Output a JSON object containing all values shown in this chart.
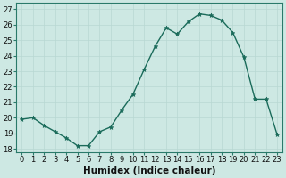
{
  "x": [
    0,
    1,
    2,
    3,
    4,
    5,
    6,
    7,
    8,
    9,
    10,
    11,
    12,
    13,
    14,
    15,
    16,
    17,
    18,
    19,
    20,
    21,
    22,
    23
  ],
  "y": [
    19.9,
    20.0,
    19.5,
    19.1,
    18.7,
    18.2,
    18.2,
    19.1,
    19.4,
    20.5,
    21.5,
    23.1,
    24.6,
    25.8,
    25.4,
    26.2,
    26.7,
    26.6,
    26.3,
    25.5,
    23.9,
    21.2,
    21.2,
    18.9
  ],
  "line_color": "#1a6b5a",
  "marker": "*",
  "marker_size": 3.5,
  "bg_color": "#cde8e3",
  "grid_color": "#b8d8d2",
  "xlabel": "Humidex (Indice chaleur)",
  "ylabel_ticks": [
    18,
    19,
    20,
    21,
    22,
    23,
    24,
    25,
    26,
    27
  ],
  "xticks": [
    0,
    1,
    2,
    3,
    4,
    5,
    6,
    7,
    8,
    9,
    10,
    11,
    12,
    13,
    14,
    15,
    16,
    17,
    18,
    19,
    20,
    21,
    22,
    23
  ],
  "xlim": [
    -0.5,
    23.5
  ],
  "ylim": [
    17.8,
    27.4
  ],
  "tick_fontsize": 6,
  "xlabel_fontsize": 7.5,
  "line_width": 1.0,
  "spine_color": "#2a7a6a"
}
